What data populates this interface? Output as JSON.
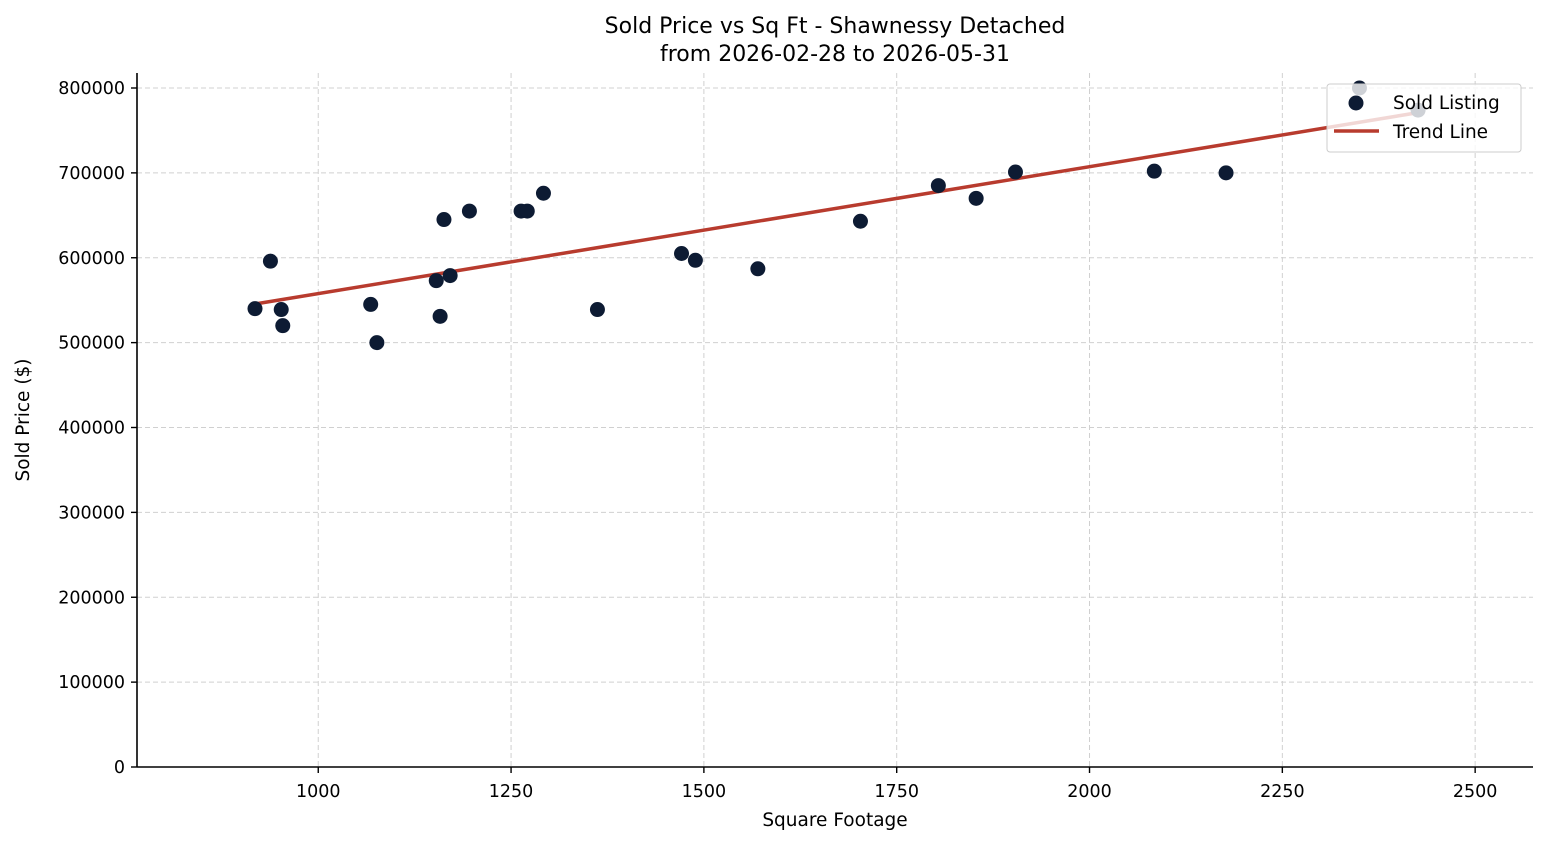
{
  "chart_data": {
    "type": "scatter",
    "title": "Sold Price vs Sq Ft - Shawnessy Detached",
    "subtitle": "from 2026-02-28 to 2026-05-31",
    "xlabel": "Square Footage",
    "ylabel": "Sold Price ($)",
    "xlim": [
      765,
      2575
    ],
    "ylim": [
      0,
      800000
    ],
    "xticks": [
      1000,
      1250,
      1500,
      1750,
      2000,
      2250,
      2500
    ],
    "yticks": [
      0,
      100000,
      200000,
      300000,
      400000,
      500000,
      600000,
      700000,
      800000
    ],
    "xtick_labels": [
      "1000",
      "1250",
      "1500",
      "1750",
      "2000",
      "2250",
      "2500"
    ],
    "ytick_labels": [
      "0",
      "100000",
      "200000",
      "300000",
      "400000",
      "500000",
      "600000",
      "700000",
      "800000"
    ],
    "grid": true,
    "legend_position": "upper right",
    "colors": {
      "points": "#0d1b33",
      "trend": "#b83b2e"
    },
    "series": [
      {
        "name": "Sold Listing",
        "type": "scatter",
        "x": [
          918,
          938,
          952,
          954,
          1068,
          1076,
          1153,
          1158,
          1163,
          1171,
          1196,
          1263,
          1271,
          1292,
          1362,
          1471,
          1489,
          1570,
          1703,
          1804,
          1853,
          1904,
          2084,
          2177,
          2350,
          2426
        ],
        "y": [
          540000,
          596000,
          539000,
          520000,
          545000,
          500000,
          573000,
          531000,
          645000,
          579000,
          655000,
          655000,
          655000,
          676000,
          539000,
          605000,
          597000,
          587000,
          643000,
          685000,
          670000,
          701000,
          702000,
          700000,
          800000,
          774000
        ]
      },
      {
        "name": "Trend Line",
        "type": "line",
        "x": [
          918,
          2426
        ],
        "y": [
          545500,
          771000
        ]
      }
    ]
  }
}
